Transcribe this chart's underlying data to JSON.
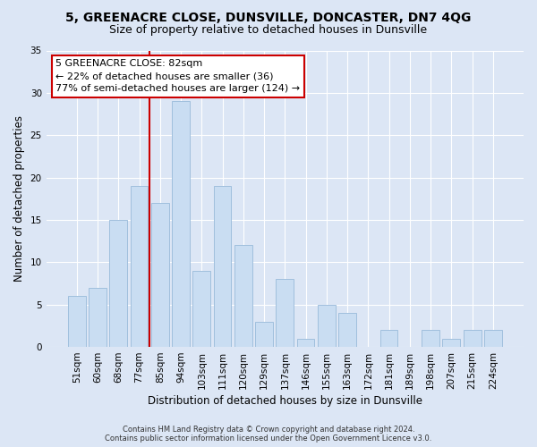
{
  "title": "5, GREENACRE CLOSE, DUNSVILLE, DONCASTER, DN7 4QG",
  "subtitle": "Size of property relative to detached houses in Dunsville",
  "xlabel": "Distribution of detached houses by size in Dunsville",
  "ylabel": "Number of detached properties",
  "categories": [
    "51sqm",
    "60sqm",
    "68sqm",
    "77sqm",
    "85sqm",
    "94sqm",
    "103sqm",
    "111sqm",
    "120sqm",
    "129sqm",
    "137sqm",
    "146sqm",
    "155sqm",
    "163sqm",
    "172sqm",
    "181sqm",
    "189sqm",
    "198sqm",
    "207sqm",
    "215sqm",
    "224sqm"
  ],
  "values": [
    6,
    7,
    15,
    19,
    17,
    29,
    9,
    19,
    12,
    3,
    8,
    1,
    5,
    4,
    0,
    2,
    0,
    2,
    1,
    2,
    2
  ],
  "bar_color": "#c9ddf2",
  "bar_edge_color": "#a0bfdd",
  "vline_color": "#cc0000",
  "vline_x_index": 3.5,
  "ylim": [
    0,
    35
  ],
  "yticks": [
    0,
    5,
    10,
    15,
    20,
    25,
    30,
    35
  ],
  "annotation_text": "5 GREENACRE CLOSE: 82sqm\n← 22% of detached houses are smaller (36)\n77% of semi-detached houses are larger (124) →",
  "annotation_box_color": "#ffffff",
  "annotation_box_edge": "#cc0000",
  "footer_line1": "Contains HM Land Registry data © Crown copyright and database right 2024.",
  "footer_line2": "Contains public sector information licensed under the Open Government Licence v3.0.",
  "bg_color": "#dce6f5",
  "plot_bg_color": "#dce6f5",
  "title_fontsize": 10,
  "subtitle_fontsize": 9,
  "tick_fontsize": 7.5,
  "ylabel_fontsize": 8.5,
  "xlabel_fontsize": 8.5
}
